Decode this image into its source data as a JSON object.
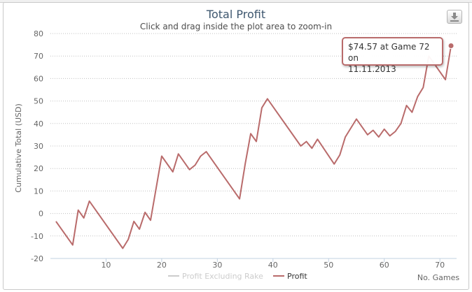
{
  "chart_data": {
    "type": "line",
    "title": "Total Profit",
    "subtitle": "Click and drag inside the plot area to zoom-in",
    "xlabel": "No. Games",
    "ylabel": "Cumulative Total (USD)",
    "xlim": [
      0,
      73
    ],
    "ylim": [
      -20,
      80
    ],
    "x_ticks": [
      10,
      20,
      30,
      40,
      50,
      60,
      70
    ],
    "y_ticks": [
      80,
      70,
      60,
      50,
      40,
      30,
      20,
      10,
      0,
      -10,
      -20
    ],
    "grid": true,
    "legend_position": "bottom-center",
    "series": [
      {
        "name": "Profit Excluding Rake",
        "visible": false,
        "color": "#dddddd",
        "points": []
      },
      {
        "name": "Profit",
        "visible": true,
        "color": "#b96b6b",
        "points": [
          [
            1,
            -3.5
          ],
          [
            4,
            -14
          ],
          [
            5,
            1.5
          ],
          [
            6,
            -2
          ],
          [
            7,
            5.5
          ],
          [
            13,
            -15.5
          ],
          [
            14,
            -11.5
          ],
          [
            15,
            -3.5
          ],
          [
            16,
            -7
          ],
          [
            17,
            0.5
          ],
          [
            18,
            -3
          ],
          [
            20,
            25.5
          ],
          [
            22,
            18.5
          ],
          [
            23,
            26.5
          ],
          [
            25,
            19.5
          ],
          [
            26,
            21.5
          ],
          [
            27,
            25.5
          ],
          [
            28,
            27.5
          ],
          [
            34,
            6.5
          ],
          [
            35,
            22
          ],
          [
            36,
            35.5
          ],
          [
            37,
            32
          ],
          [
            38,
            47
          ],
          [
            39,
            51
          ],
          [
            45,
            30
          ],
          [
            46,
            32
          ],
          [
            47,
            29
          ],
          [
            48,
            33
          ],
          [
            51,
            22
          ],
          [
            52,
            26
          ],
          [
            53,
            34
          ],
          [
            55,
            42
          ],
          [
            57,
            35
          ],
          [
            58,
            37
          ],
          [
            59,
            34
          ],
          [
            60,
            37.5
          ],
          [
            61,
            34.5
          ],
          [
            62,
            36.5
          ],
          [
            63,
            40
          ],
          [
            64,
            48
          ],
          [
            65,
            45
          ],
          [
            66,
            52
          ],
          [
            67,
            56
          ],
          [
            68,
            70
          ],
          [
            71,
            59.5
          ],
          [
            72,
            74.57
          ]
        ]
      }
    ],
    "tooltip": {
      "text_line1": "$74.57 at Game 72 on",
      "text_line2": "11.11.2013",
      "x": 72,
      "y": 74.57
    }
  },
  "toolbar": {
    "export_icon": "download-icon"
  },
  "colors": {
    "title": "#3e576f",
    "axis_text": "#666666",
    "grid": "#c0c0c0",
    "profit": "#b96b6b",
    "hidden_series": "#cccccc"
  }
}
